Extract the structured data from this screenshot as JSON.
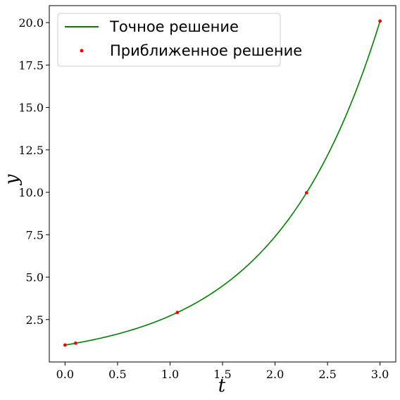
{
  "chart_data": {
    "type": "line",
    "xlabel": "t",
    "ylabel": "y",
    "xlim": [
      -0.15,
      3.15
    ],
    "ylim": [
      0.0,
      21.0
    ],
    "x_ticks": [
      "0.0",
      "0.5",
      "1.0",
      "1.5",
      "2.0",
      "2.5",
      "3.0"
    ],
    "x_tick_values": [
      0.0,
      0.5,
      1.0,
      1.5,
      2.0,
      2.5,
      3.0
    ],
    "y_ticks": [
      "2.5",
      "5.0",
      "7.5",
      "10.0",
      "12.5",
      "15.0",
      "17.5",
      "20.0"
    ],
    "y_tick_values": [
      2.5,
      5.0,
      7.5,
      10.0,
      12.5,
      15.0,
      17.5,
      20.0
    ],
    "grid": false,
    "legend_position": "upper-left",
    "series": [
      {
        "name": "Точное решение",
        "kind": "line",
        "color": "#008000",
        "formula": "y = exp(t)",
        "x_range": [
          0.0,
          3.0
        ],
        "endpoints": [
          [
            0.0,
            1.0
          ],
          [
            3.0,
            20.09
          ]
        ]
      },
      {
        "name": "Приближенное решение",
        "kind": "points",
        "color": "#ff0000",
        "x": [
          0.0,
          0.1,
          1.07,
          2.3,
          3.0
        ],
        "y": [
          1.0,
          1.11,
          2.92,
          9.97,
          20.09
        ]
      }
    ]
  }
}
